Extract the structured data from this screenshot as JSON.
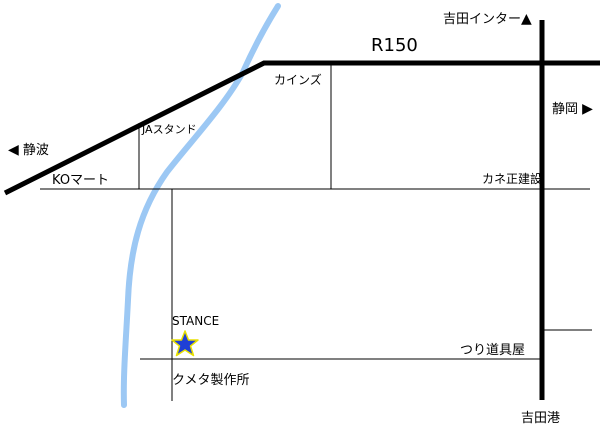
{
  "map": {
    "roads": {
      "r150": "R150"
    },
    "directions": {
      "yoshida_ic": "吉田インター",
      "shizuoka": "静岡",
      "shizunami": "静波",
      "yoshida_port": "吉田港"
    },
    "landmarks": {
      "cainz": "カインズ",
      "ja_stand": "JAスタンド",
      "ko_mart": "KOマート",
      "kanesho": "カネ正建設",
      "tsuri": "つり道具屋",
      "kumeta": "クメタ製作所"
    },
    "destination": {
      "name": "STANCE",
      "marker_icon": "star-icon",
      "marker_color": "#1f3fd6",
      "marker_outline": "#e8e000"
    },
    "colors": {
      "river": "#9cc8f4",
      "major_road": "#000000"
    }
  }
}
